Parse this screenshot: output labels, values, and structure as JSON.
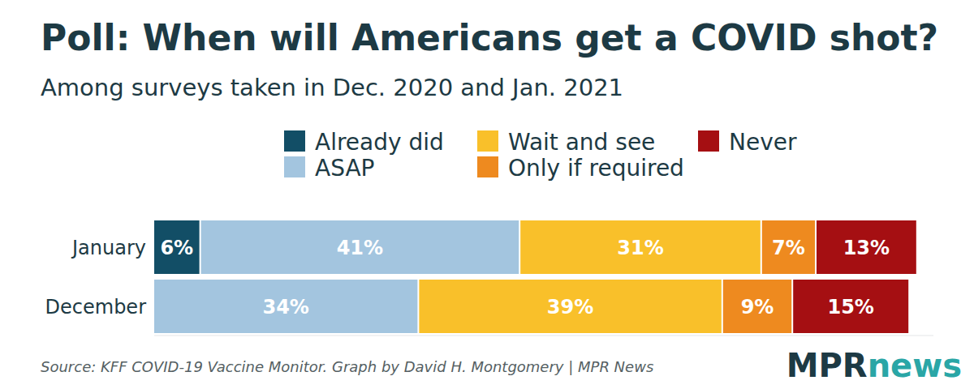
{
  "chart_data": {
    "type": "bar",
    "orientation": "horizontal",
    "stacked": true,
    "data_labels": true,
    "tick_labels": "y",
    "grid": false,
    "title": "Poll: When will Americans get a COVID shot?",
    "subtitle": "Among surveys taken in Dec. 2020 and Jan. 2021",
    "source": "Source: KFF COVID-19 Vaccine Monitor. Graph by David H. Montgomery | MPR News",
    "logo": [
      "MPR",
      "news"
    ],
    "categories": [
      "January",
      "December"
    ],
    "xlim": [
      0,
      100
    ],
    "series": [
      {
        "name": "Already did",
        "color": "#124e66",
        "values": [
          6,
          null
        ],
        "value_labels": [
          "6%",
          null
        ]
      },
      {
        "name": "ASAP",
        "color": "#a3c5df",
        "values": [
          41,
          34
        ],
        "value_labels": [
          "41%",
          "34%"
        ]
      },
      {
        "name": "Wait and see",
        "color": "#f9c02a",
        "values": [
          31,
          39
        ],
        "value_labels": [
          "31%",
          "39%"
        ]
      },
      {
        "name": "Only if required",
        "color": "#ee8a1f",
        "values": [
          7,
          9
        ],
        "value_labels": [
          "7%",
          "9%"
        ]
      },
      {
        "name": "Never",
        "color": "#a50f12",
        "values": [
          13,
          15
        ],
        "value_labels": [
          "13%",
          "15%"
        ]
      }
    ]
  }
}
